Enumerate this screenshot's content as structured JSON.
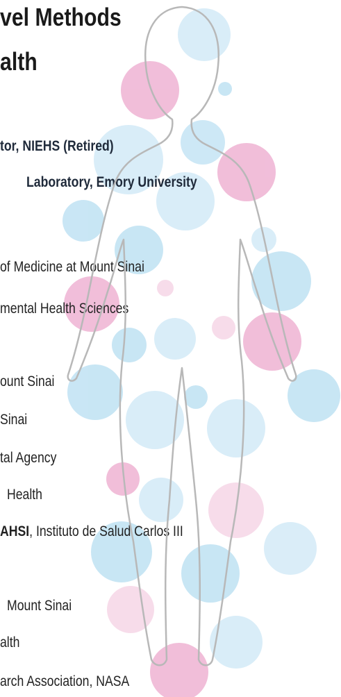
{
  "title": {
    "lines": [
      "vel Methods",
      "alth"
    ]
  },
  "people": [
    {
      "text": "tor, NIEHS (Retired)"
    },
    {
      "text": "Laboratory, Emory University"
    }
  ],
  "lines": [
    "of Medicine at Mount Sinai",
    "mental Health Sciences",
    "ount Sinai",
    "Sinai",
    "tal Agency",
    "Health"
  ],
  "mixed": {
    "bold": "AHSI",
    "rest": ", Instituto de Salud Carlos III"
  },
  "more_lines": [
    "Mount Sinai",
    "alth",
    "arch Association, NASA"
  ]
}
